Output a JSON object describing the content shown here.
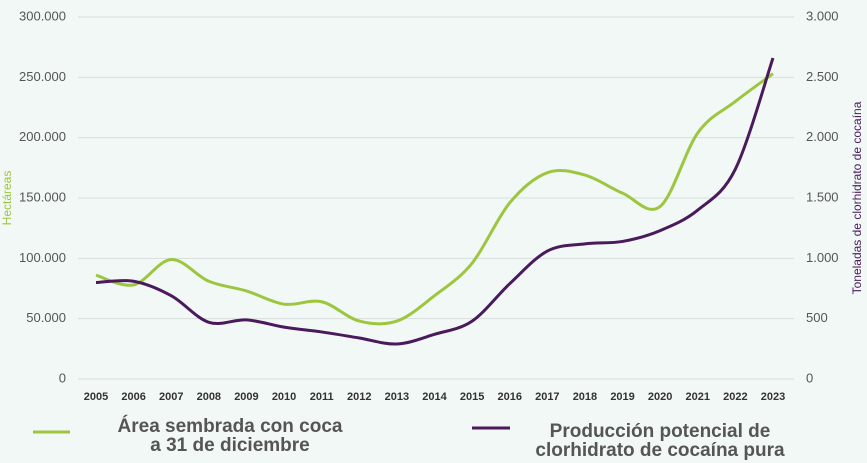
{
  "chart_data": {
    "type": "line",
    "categories": [
      "2005",
      "2006",
      "2007",
      "2008",
      "2009",
      "2010",
      "2011",
      "2012",
      "2013",
      "2014",
      "2015",
      "2016",
      "2017",
      "2018",
      "2019",
      "2020",
      "2021",
      "2022",
      "2023"
    ],
    "ylabel": "Hectáreas",
    "y2label": "Toneladas de clorhidrato de cocaína",
    "ylim": [
      0,
      300000
    ],
    "yticks": [
      0,
      {
        "value": 50000,
        "label": "50.000"
      },
      {
        "value": 100000,
        "label": "100.000"
      },
      {
        "value": 150000,
        "label": "150.000"
      },
      {
        "value": 200000,
        "label": "200.000"
      },
      {
        "value": 250000,
        "label": "250.000"
      },
      {
        "value": 300000,
        "label": "300.000"
      }
    ],
    "y2lim": [
      0,
      3000
    ],
    "y2ticks": [
      0,
      500,
      {
        "value": 1000,
        "label": "1.000"
      },
      {
        "value": 1500,
        "label": "1.500"
      },
      {
        "value": 2000,
        "label": "2.000"
      },
      {
        "value": 2500,
        "label": "2.500"
      },
      {
        "value": 3000,
        "label": "3.000"
      }
    ],
    "grid": true,
    "series": [
      {
        "name": "Área sembrada con coca\na  31 de diciembre",
        "color": "#9dc63e",
        "values": [
          86000,
          78000,
          99000,
          81000,
          73000,
          62000,
          64000,
          48000,
          48000,
          69000,
          96000,
          146000,
          171000,
          169000,
          154000,
          143000,
          204000,
          230000,
          253000
        ]
      },
      {
        "name": "Producción potencial de\nclorhidrato de cocaína pura",
        "color": "#4a1a5c",
        "axis": "y2",
        "values": [
          800,
          810,
          690,
          470,
          490,
          430,
          390,
          340,
          290,
          370,
          480,
          790,
          1060,
          1120,
          1140,
          1230,
          1400,
          1740,
          2660
        ]
      }
    ]
  }
}
